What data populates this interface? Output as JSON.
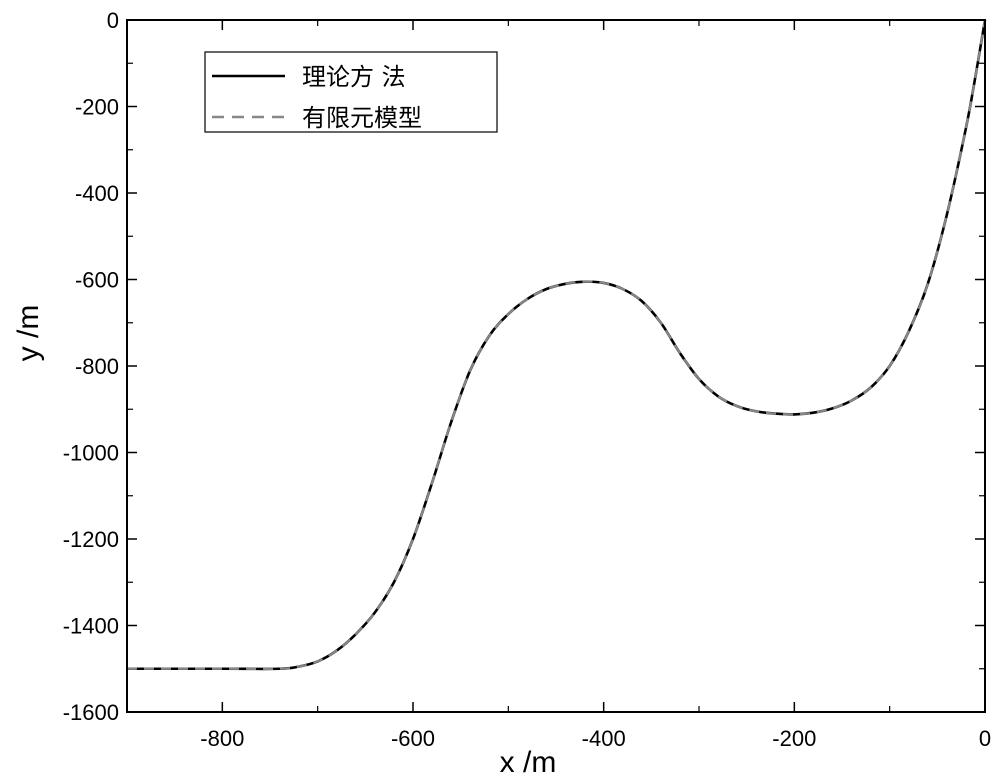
{
  "chart_data": {
    "type": "line",
    "xlabel": "x /m",
    "ylabel": "y /m",
    "xlim": [
      -900,
      0
    ],
    "ylim": [
      -1600,
      0
    ],
    "x_ticks": [
      -800,
      -600,
      -400,
      -200,
      0
    ],
    "y_ticks": [
      0,
      -200,
      -400,
      -600,
      -800,
      -1000,
      -1200,
      -1400,
      -1600
    ],
    "grid": false,
    "legend_position": "top-left",
    "series": [
      {
        "name": "理论方 法",
        "style": "solid",
        "color": "#000000",
        "x": [
          -900,
          -800,
          -740,
          -720,
          -700,
          -680,
          -660,
          -640,
          -620,
          -600,
          -580,
          -560,
          -540,
          -520,
          -500,
          -480,
          -460,
          -440,
          -420,
          -400,
          -380,
          -360,
          -340,
          -320,
          -300,
          -280,
          -260,
          -240,
          -220,
          -200,
          -180,
          -160,
          -140,
          -120,
          -100,
          -80,
          -60,
          -40,
          -20,
          -10,
          0
        ],
        "y": [
          -1500,
          -1500,
          -1500,
          -1495,
          -1483,
          -1458,
          -1420,
          -1370,
          -1300,
          -1200,
          -1070,
          -930,
          -810,
          -730,
          -680,
          -645,
          -622,
          -610,
          -605,
          -608,
          -622,
          -650,
          -700,
          -770,
          -830,
          -870,
          -893,
          -905,
          -910,
          -912,
          -908,
          -898,
          -880,
          -850,
          -800,
          -720,
          -610,
          -450,
          -250,
          -130,
          0
        ]
      },
      {
        "name": "有限元模型",
        "style": "dashed",
        "color": "#888888",
        "x": [
          -900,
          -800,
          -740,
          -720,
          -700,
          -680,
          -660,
          -640,
          -620,
          -600,
          -580,
          -560,
          -540,
          -520,
          -500,
          -480,
          -460,
          -440,
          -420,
          -400,
          -380,
          -360,
          -340,
          -320,
          -300,
          -280,
          -260,
          -240,
          -220,
          -200,
          -180,
          -160,
          -140,
          -120,
          -100,
          -80,
          -60,
          -40,
          -20,
          -10,
          0
        ],
        "y": [
          -1500,
          -1500,
          -1500,
          -1495,
          -1483,
          -1458,
          -1420,
          -1370,
          -1300,
          -1200,
          -1070,
          -930,
          -810,
          -730,
          -680,
          -645,
          -622,
          -610,
          -605,
          -608,
          -622,
          -650,
          -700,
          -770,
          -830,
          -870,
          -893,
          -905,
          -910,
          -912,
          -908,
          -898,
          -880,
          -850,
          -800,
          -720,
          -610,
          -450,
          -250,
          -130,
          0
        ]
      }
    ]
  }
}
